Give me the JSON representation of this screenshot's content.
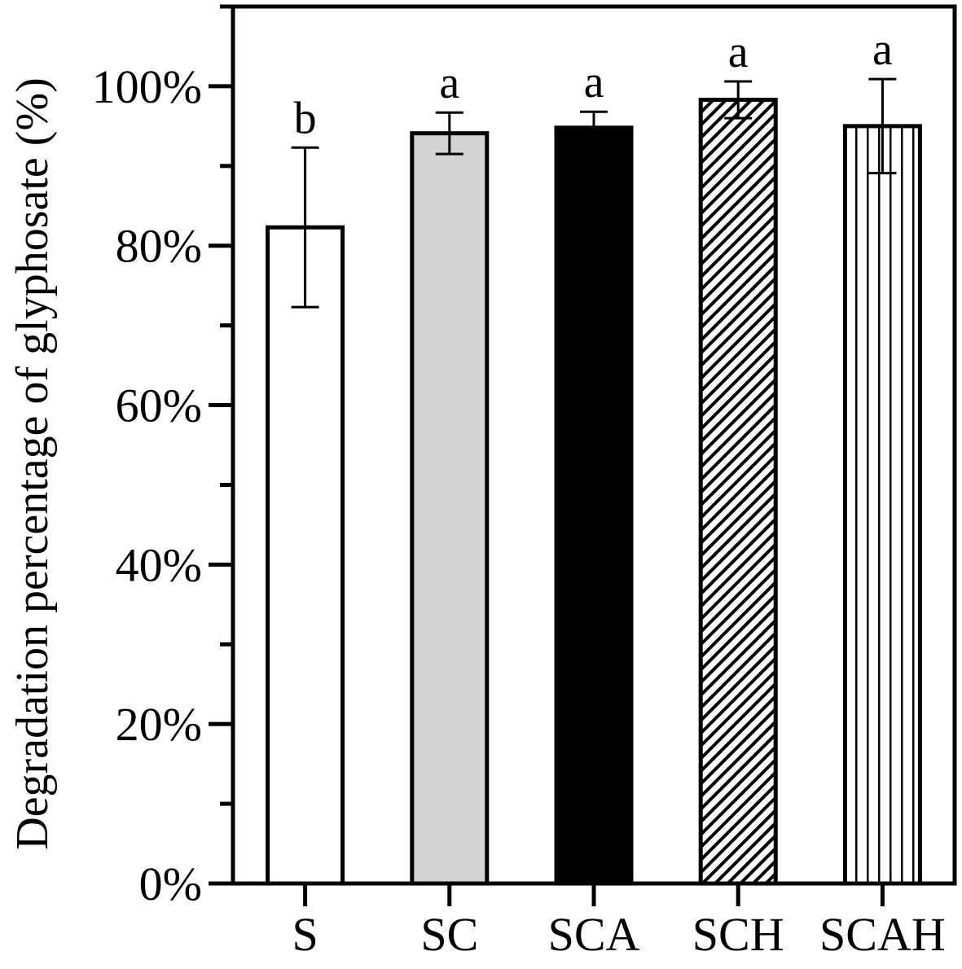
{
  "chart_data": {
    "type": "bar",
    "title": "",
    "xlabel": "",
    "ylabel": "Degradation percentage of glyphosate (%)",
    "ylim": [
      0,
      110
    ],
    "yticks": [
      0,
      20,
      40,
      60,
      80,
      100
    ],
    "yticks_minor": [
      10,
      30,
      50,
      70,
      90,
      110
    ],
    "ytick_labels": [
      "0%",
      "20%",
      "40%",
      "60%",
      "80%",
      "100%"
    ],
    "grid": false,
    "legend": "none",
    "categories": [
      "S",
      "SC",
      "SCA",
      "SCH",
      "SCAH"
    ],
    "values": [
      82.3,
      94.1,
      94.8,
      98.3,
      95.0
    ],
    "errors": [
      10.0,
      2.6,
      2.0,
      2.3,
      5.9
    ],
    "significance": [
      "b",
      "a",
      "a",
      "a",
      "a"
    ],
    "fills": [
      {
        "style": "solid",
        "color": "#ffffff"
      },
      {
        "style": "solid",
        "color": "#d3d3d3"
      },
      {
        "style": "solid",
        "color": "#000000"
      },
      {
        "style": "diagonal-hatch",
        "color": "#000000"
      },
      {
        "style": "vertical-lines",
        "color": "#000000"
      }
    ]
  }
}
